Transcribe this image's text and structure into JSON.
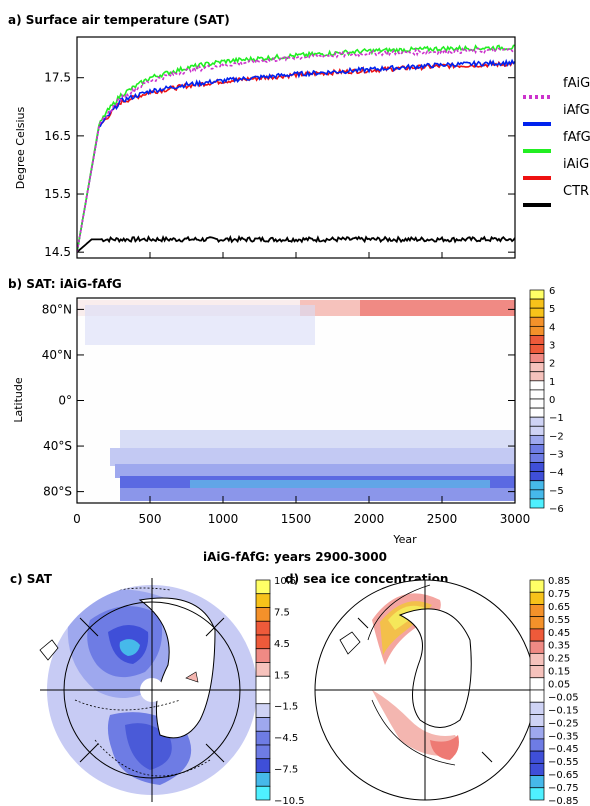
{
  "chart_data": [
    {
      "panel": "a",
      "type": "line",
      "title": "a) Surface air temperature (SAT)",
      "xlabel": "",
      "ylabel": "Degree Celsius",
      "xlim": [
        0,
        3000
      ],
      "ylim": [
        14.4,
        18.2
      ],
      "yticks": [
        "14.5",
        "15.5",
        "16.5",
        "17.5"
      ],
      "series": [
        {
          "name": "fAiG",
          "color": "#cc33cc",
          "dashed": true,
          "x": [
            0,
            150,
            200,
            300,
            500,
            750,
            1000,
            1500,
            2000,
            2500,
            3000
          ],
          "y": [
            14.5,
            16.65,
            16.85,
            17.15,
            17.45,
            17.62,
            17.72,
            17.85,
            17.92,
            17.95,
            17.98
          ]
        },
        {
          "name": "iAfG",
          "color": "#0022ee",
          "x": [
            0,
            150,
            200,
            300,
            500,
            750,
            1000,
            1500,
            2000,
            2500,
            3000
          ],
          "y": [
            14.5,
            16.65,
            16.8,
            17.1,
            17.27,
            17.38,
            17.45,
            17.56,
            17.64,
            17.72,
            17.76
          ]
        },
        {
          "name": "fAfG",
          "color": "#22ee22",
          "x": [
            0,
            150,
            200,
            300,
            500,
            750,
            1000,
            1500,
            2000,
            2500,
            3000
          ],
          "y": [
            14.5,
            16.68,
            16.9,
            17.2,
            17.5,
            17.67,
            17.78,
            17.88,
            17.96,
            18.0,
            18.02
          ]
        },
        {
          "name": "iAiG",
          "color": "#ee1111",
          "x": [
            0,
            150,
            200,
            300,
            500,
            750,
            1000,
            1500,
            2000,
            2500,
            3000
          ],
          "y": [
            14.5,
            16.65,
            16.8,
            17.08,
            17.25,
            17.36,
            17.44,
            17.55,
            17.63,
            17.7,
            17.74
          ]
        },
        {
          "name": "CTRL",
          "color": "#000000",
          "x": [
            0,
            100,
            3000
          ],
          "y": [
            14.5,
            14.72,
            14.72
          ]
        }
      ]
    },
    {
      "panel": "b",
      "type": "heatmap",
      "title": "b) SAT: iAiG-fAfG",
      "xlabel": "Year",
      "ylabel": "Latitude",
      "xlim": [
        0,
        3000
      ],
      "ylim": [
        -90,
        90
      ],
      "xticks": [
        "0",
        "500",
        "1000",
        "1500",
        "2000",
        "2500",
        "3000"
      ],
      "yticks": [
        "80°S",
        "40°S",
        "0°",
        "40°N",
        "80°N"
      ],
      "colorbar_ticks": [
        "6",
        "5",
        "4",
        "3",
        "2",
        "1",
        "0",
        "−1",
        "−2",
        "−3",
        "−4",
        "−5",
        "−6"
      ]
    },
    {
      "panel": "c",
      "type": "heatmap",
      "title": "c) SAT",
      "supertitle": "iAiG-fAfG: years 2900-3000",
      "colorbar_ticks": [
        "10.5",
        "7.5",
        "4.5",
        "1.5",
        "−1.5",
        "−4.5",
        "−7.5",
        "−10.5"
      ]
    },
    {
      "panel": "d",
      "type": "heatmap",
      "title": "d) sea ice concentration",
      "colorbar_ticks": [
        "0.85",
        "0.75",
        "0.65",
        "0.55",
        "0.45",
        "0.35",
        "0.25",
        "0.15",
        "0.05",
        "−0.05",
        "−0.15",
        "−0.25",
        "−0.35",
        "−0.45",
        "−0.55",
        "−0.65",
        "−0.75",
        "−0.85"
      ]
    }
  ]
}
